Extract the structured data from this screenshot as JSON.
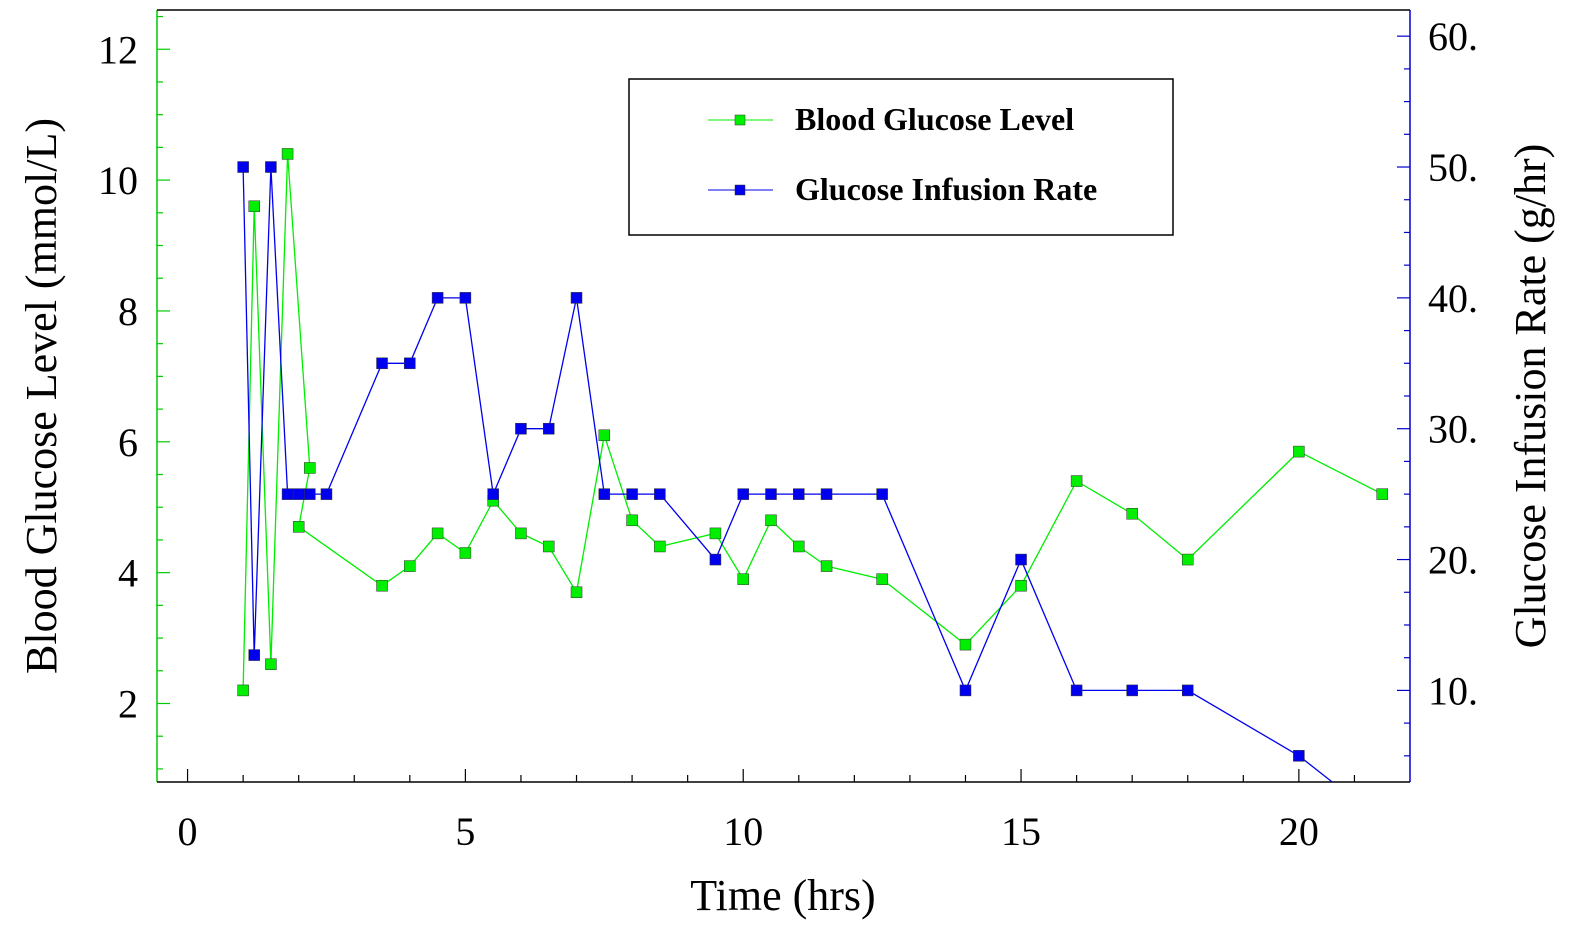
{
  "chart_data": {
    "type": "line",
    "xlabel": "Time (hrs)",
    "ylabel_left": "Blood Glucose Level (mmol/L)",
    "ylabel_right": "Glucose Infusion Rate (g/hr)",
    "xlim": [
      -0.55,
      22.0
    ],
    "ylim_left": [
      0.8,
      12.6
    ],
    "ylim_right": [
      3.0,
      62.0
    ],
    "x_ticks": [
      0,
      5,
      10,
      15,
      20
    ],
    "x_tick_labels": [
      "0",
      "5",
      "10",
      "15",
      "20"
    ],
    "y_left_ticks": [
      2,
      4,
      6,
      8,
      10,
      12
    ],
    "y_left_tick_labels": [
      "2",
      "4",
      "6",
      "8",
      "10",
      "12"
    ],
    "y_right_ticks": [
      10,
      20,
      30,
      40,
      50,
      60
    ],
    "y_right_tick_labels": [
      "10.",
      "20.",
      "30.",
      "40.",
      "50.",
      "60."
    ],
    "legend_position": "top-right",
    "grid": false,
    "series": [
      {
        "name": "Blood Glucose Level",
        "axis": "left",
        "color": "#00ee00",
        "points": [
          [
            1.0,
            2.2
          ],
          [
            1.2,
            9.6
          ],
          [
            1.5,
            2.6
          ],
          [
            1.8,
            10.4
          ],
          [
            2.2,
            5.6
          ],
          [
            2.0,
            4.7
          ],
          [
            3.5,
            3.8
          ],
          [
            4.0,
            4.1
          ],
          [
            4.5,
            4.6
          ],
          [
            5.0,
            4.3
          ],
          [
            5.5,
            5.1
          ],
          [
            6.0,
            4.6
          ],
          [
            6.5,
            4.4
          ],
          [
            7.0,
            3.7
          ],
          [
            7.5,
            6.1
          ],
          [
            8.0,
            4.8
          ],
          [
            8.5,
            4.4
          ],
          [
            9.5,
            4.6
          ],
          [
            10.0,
            3.9
          ],
          [
            10.5,
            4.8
          ],
          [
            11.0,
            4.4
          ],
          [
            11.5,
            4.1
          ],
          [
            12.5,
            3.9
          ],
          [
            14.0,
            2.9
          ],
          [
            15.0,
            3.8
          ],
          [
            16.0,
            5.4
          ],
          [
            17.0,
            4.9
          ],
          [
            18.0,
            4.2
          ],
          [
            20.0,
            5.85
          ],
          [
            21.5,
            5.2
          ]
        ]
      },
      {
        "name": "Glucose Infusion Rate",
        "axis": "right",
        "color": "#0000ee",
        "points": [
          [
            1.0,
            50
          ],
          [
            1.2,
            12.7
          ],
          [
            1.5,
            50
          ],
          [
            1.8,
            25
          ],
          [
            2.0,
            25
          ],
          [
            2.2,
            25
          ],
          [
            2.5,
            25
          ],
          [
            3.5,
            35
          ],
          [
            4.0,
            35
          ],
          [
            4.5,
            40
          ],
          [
            5.0,
            40
          ],
          [
            5.5,
            25
          ],
          [
            6.0,
            30
          ],
          [
            6.5,
            30
          ],
          [
            7.0,
            40
          ],
          [
            7.5,
            25
          ],
          [
            8.0,
            25
          ],
          [
            8.5,
            25
          ],
          [
            9.5,
            20
          ],
          [
            10.0,
            25
          ],
          [
            10.5,
            25
          ],
          [
            11.0,
            25
          ],
          [
            11.5,
            25
          ],
          [
            12.5,
            25
          ],
          [
            14.0,
            10
          ],
          [
            15.0,
            20
          ],
          [
            16.0,
            10
          ],
          [
            17.0,
            10
          ],
          [
            18.0,
            10
          ],
          [
            20.0,
            5
          ],
          [
            20.6,
            3.0
          ]
        ]
      }
    ]
  }
}
